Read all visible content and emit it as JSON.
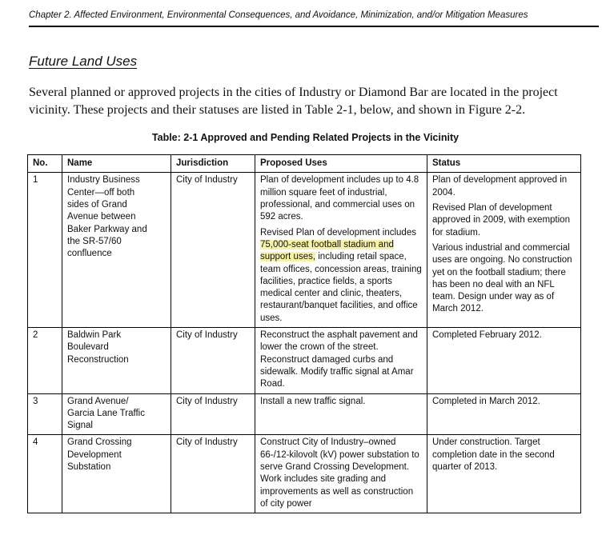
{
  "page": {
    "header": "Chapter 2. Affected Environment, Environmental Consequences, and Avoidance, Minimization, and/or Mitigation Measures",
    "section_heading": "Future Land Uses",
    "intro_paragraph": "Several planned or approved projects in the cities of Industry or Diamond Bar are located in the project vicinity. These projects and their statuses are listed in Table 2-1, below, and shown in Figure 2-2.",
    "table_title": "Table: 2-1 Approved and Pending Related Projects in the Vicinity"
  },
  "colors": {
    "highlight": "#f7f2a5",
    "text": "#111111",
    "border": "#000000",
    "background": "#ffffff"
  },
  "table": {
    "columns": [
      "No.",
      "Name",
      "Jurisdiction",
      "Proposed Uses",
      "Status"
    ],
    "rows": [
      {
        "no": "1",
        "name": "Industry Business\nCenter—off both\nsides of Grand\nAvenue between\nBaker Parkway and\nthe SR-57/60\nconfluence",
        "jurisdiction": "City of Industry",
        "proposed_uses": [
          [
            {
              "text": "Plan of development includes up to 4.8 million square feet of industrial, professional, and commercial uses on 592 acres."
            }
          ],
          [
            {
              "text": "Revised Plan of development includes "
            },
            {
              "text": "75,000-seat football stadium and support uses,",
              "highlight": true
            },
            {
              "text": " including retail space, team offices, concession areas, training facilities, practice fields, a sports medical center and clinic, theaters, restaurant/banquet facilities, and office uses."
            }
          ]
        ],
        "status": [
          "Plan of development approved in 2004.",
          "Revised Plan of development approved in 2009, with exemption for stadium.",
          "Various industrial and commercial uses are ongoing. No construction yet on the football stadium; there has been no deal with an NFL team. Design under way as of March 2012."
        ]
      },
      {
        "no": "2",
        "name": "Baldwin Park\nBoulevard\nReconstruction",
        "jurisdiction": "City of Industry",
        "proposed_uses": [
          [
            {
              "text": "Reconstruct the asphalt pavement and lower the crown of the street. Reconstruct damaged curbs and sidewalk. Modify traffic signal at Amar Road."
            }
          ]
        ],
        "status": [
          "Completed February 2012."
        ]
      },
      {
        "no": "3",
        "name": "Grand Avenue/\nGarcia Lane Traffic\nSignal",
        "jurisdiction": "City of Industry",
        "proposed_uses": [
          [
            {
              "text": "Install a new traffic signal."
            }
          ]
        ],
        "status": [
          "Completed in March 2012."
        ]
      },
      {
        "no": "4",
        "name": "Grand Crossing\nDevelopment\nSubstation",
        "jurisdiction": "City of Industry",
        "proposed_uses": [
          [
            {
              "text": "Construct City of Industry–owned 66-/12-kilovolt (kV) power substation to serve Grand Crossing Development. Work includes site grading and improvements as well as construction of city power"
            }
          ]
        ],
        "status": [
          "Under construction. Target completion date in the second quarter of 2013."
        ]
      }
    ]
  }
}
